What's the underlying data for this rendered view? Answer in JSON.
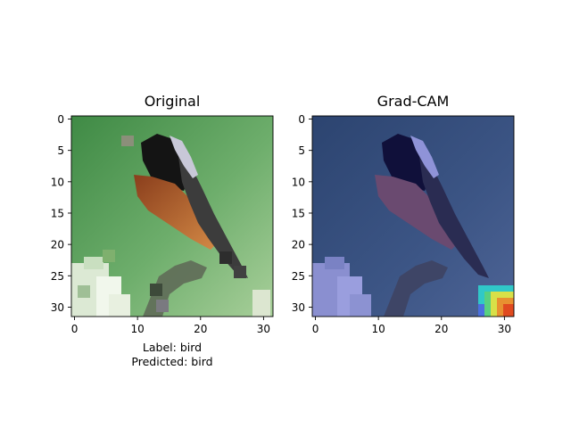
{
  "chart_data": [
    {
      "type": "heatmap",
      "title": "Original",
      "image_size": [
        32,
        32
      ],
      "xlim": [
        -0.5,
        31.5
      ],
      "ylim": [
        31.5,
        -0.5
      ],
      "xticks": [
        0,
        10,
        20,
        30
      ],
      "yticks": [
        0,
        5,
        10,
        15,
        20,
        25,
        30
      ],
      "xtick_labels": [
        "0",
        "10",
        "20",
        "30"
      ],
      "ytick_labels": [
        "0",
        "5",
        "10",
        "15",
        "20",
        "25",
        "30"
      ],
      "content": "photo-of-bird-on-green-background"
    },
    {
      "type": "heatmap",
      "title": "Grad-CAM",
      "image_size": [
        32,
        32
      ],
      "xlim": [
        -0.5,
        31.5
      ],
      "ylim": [
        31.5,
        -0.5
      ],
      "xticks": [
        0,
        10,
        20,
        30
      ],
      "yticks": [
        0,
        5,
        10,
        15,
        20,
        25,
        30
      ],
      "xtick_labels": [
        "0",
        "10",
        "20",
        "30"
      ],
      "ytick_labels": [
        "0",
        "5",
        "10",
        "15",
        "20",
        "25",
        "30"
      ],
      "content": "bird-with-blue-overlay-and-hotspot-bottom-right"
    }
  ],
  "captions": {
    "label_line": "Label: bird",
    "predicted_line": "Predicted: bird"
  },
  "colors": {
    "background_green": "#6aa86a",
    "overlay_blue": "#3a4f80",
    "bird_dark": "#1a1a1a",
    "bird_orange": "#b8622e",
    "hotspot_red": "#e04a20",
    "hotspot_yellow": "#d8e048",
    "hotspot_cyan": "#30c8c8"
  }
}
